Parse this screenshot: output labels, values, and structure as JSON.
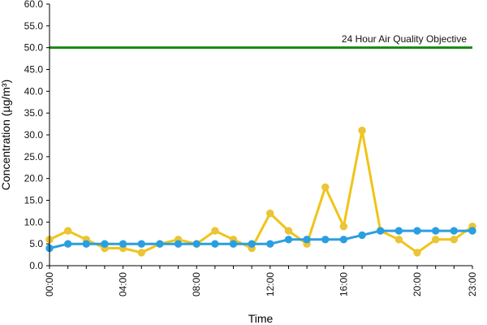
{
  "chart_data": {
    "type": "line",
    "xlabel": "Time",
    "ylabel": "Concentration (µg/m³)",
    "ylim": [
      0,
      60
    ],
    "yticks": [
      "0.0",
      "5.0",
      "10.0",
      "15.0",
      "20.0",
      "25.0",
      "30.0",
      "35.0",
      "40.0",
      "45.0",
      "50.0",
      "55.0",
      "60.0"
    ],
    "xlim": [
      0,
      23
    ],
    "xticks": [
      "00:00",
      "04:00",
      "08:00",
      "12:00",
      "16:00",
      "20:00",
      "23:00"
    ],
    "grid": false,
    "objective": {
      "label": "24 Hour Air Quality Objective",
      "value": 50,
      "color": "#138a13"
    },
    "series": [
      {
        "color": "#f0c419",
        "marker_fill": "#e9c440",
        "x": [
          0,
          1,
          2,
          3,
          4,
          5,
          6,
          7,
          8,
          9,
          10,
          11,
          12,
          13,
          14,
          15,
          16,
          17,
          18,
          19,
          20,
          21,
          22,
          23
        ],
        "values": [
          6,
          8,
          6,
          4,
          4,
          3,
          5,
          6,
          5,
          8,
          6,
          4,
          12,
          8,
          5,
          18,
          9,
          31,
          8,
          6,
          3,
          6,
          6,
          9
        ]
      },
      {
        "color": "#2a9fe0",
        "marker_fill": "#2a9fe0",
        "x": [
          0,
          1,
          2,
          3,
          4,
          5,
          6,
          7,
          8,
          9,
          10,
          11,
          12,
          13,
          14,
          15,
          16,
          17,
          18,
          19,
          20,
          21,
          22,
          23
        ],
        "values": [
          4,
          5,
          5,
          5,
          5,
          5,
          5,
          5,
          5,
          5,
          5,
          5,
          5,
          6,
          6,
          6,
          6,
          7,
          8,
          8,
          8,
          8,
          8,
          8
        ]
      }
    ]
  }
}
